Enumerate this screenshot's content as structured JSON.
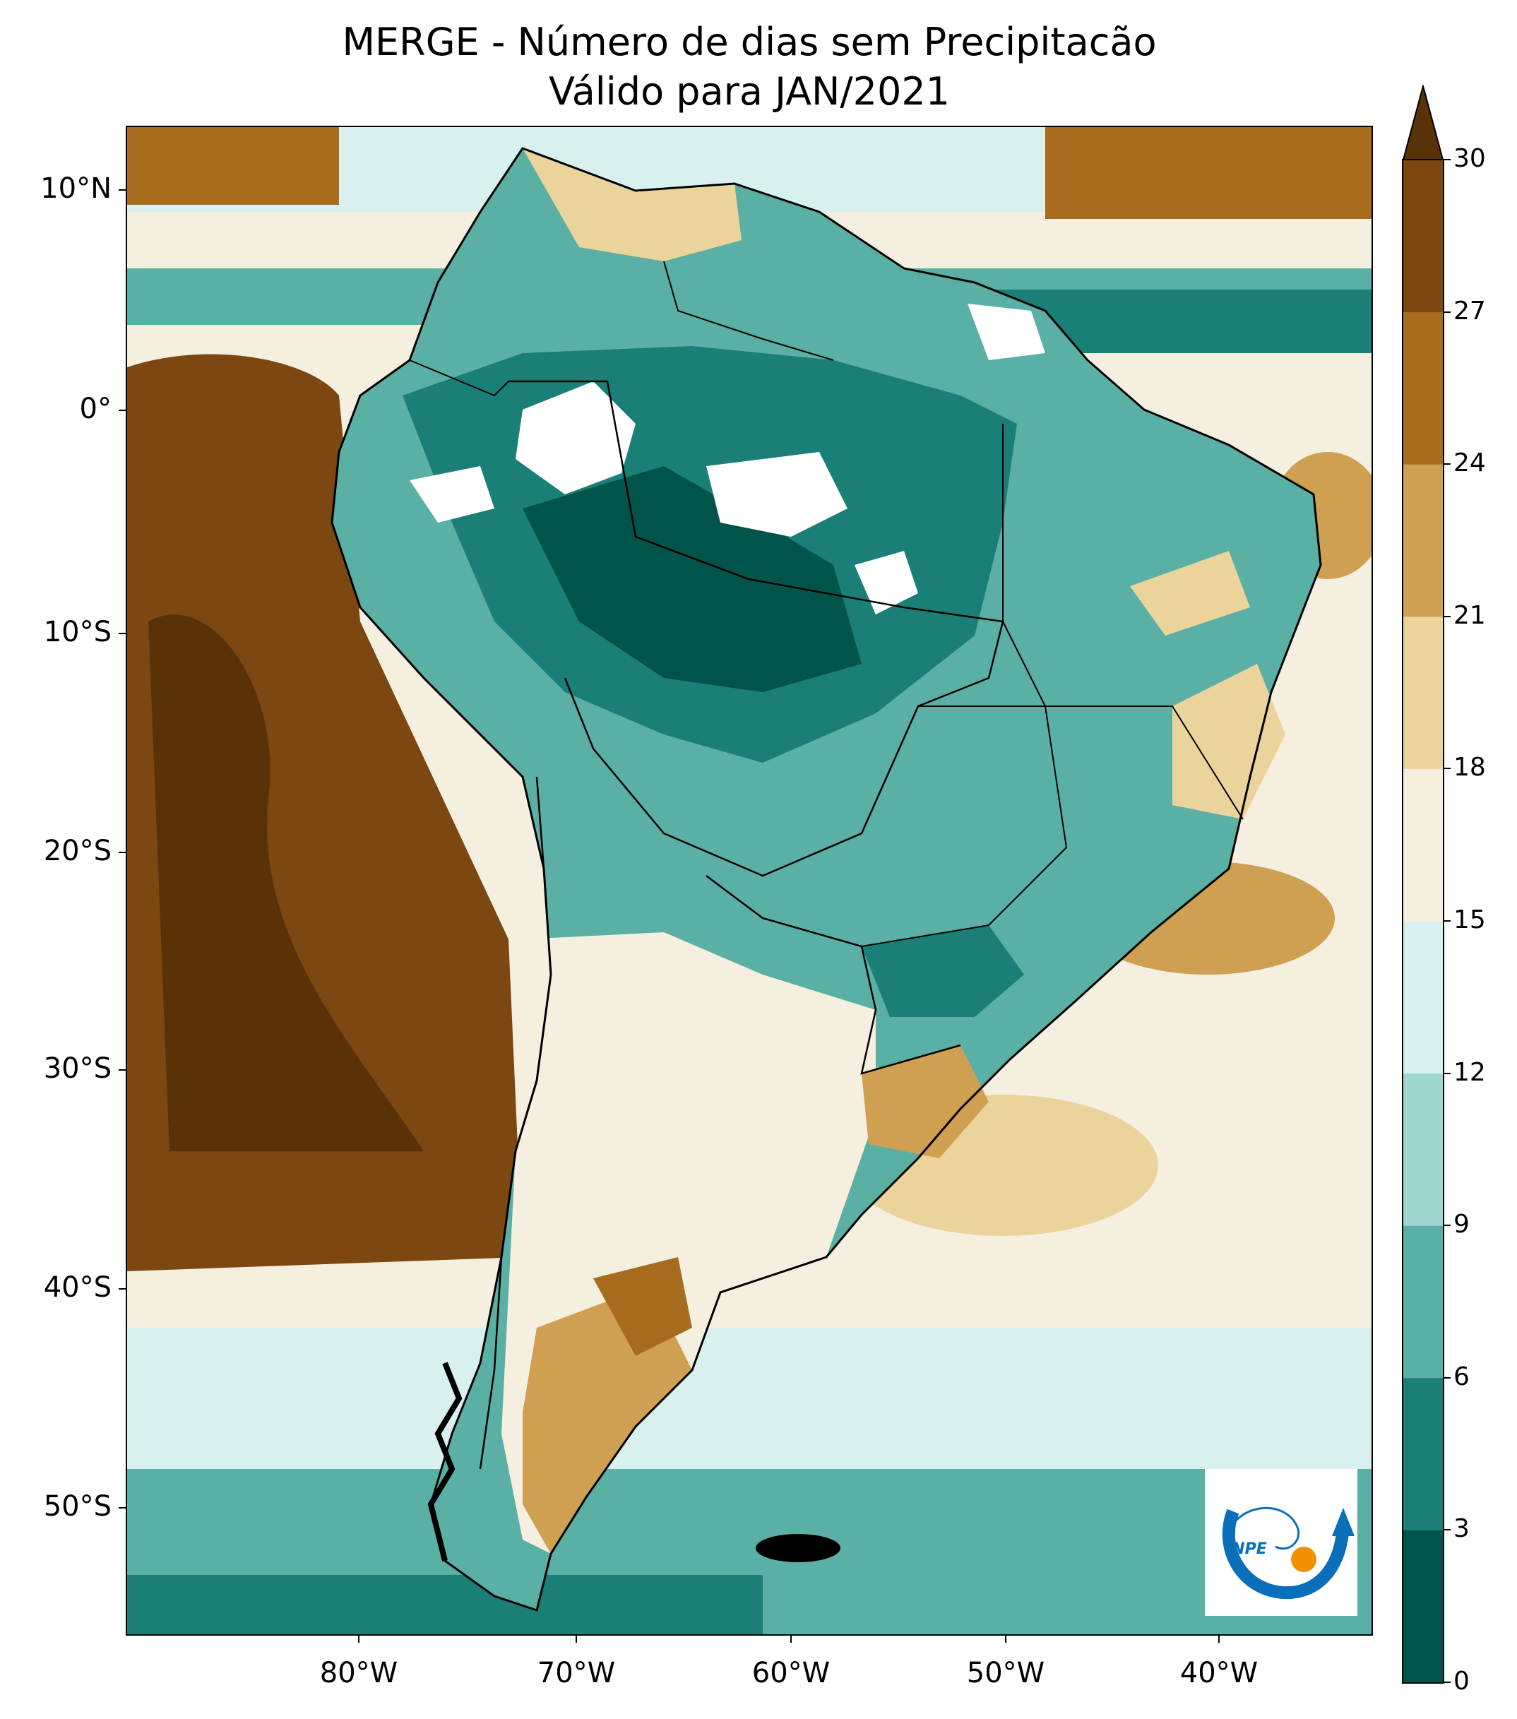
{
  "title": {
    "line1": "MERGE - Número de dias sem Precipitacão",
    "line2": "Válido para JAN/2021"
  },
  "axes": {
    "lat_ticks": [
      "10°N",
      "0°",
      "10°S",
      "20°S",
      "30°S",
      "40°S",
      "50°S"
    ],
    "lon_ticks": [
      "80°W",
      "70°W",
      "60°W",
      "50°W",
      "40°W"
    ]
  },
  "colorbar": {
    "labels": [
      "0",
      "3",
      "6",
      "9",
      "12",
      "15",
      "18",
      "21",
      "24",
      "27",
      "30"
    ],
    "colors": [
      "#01544a",
      "#1a7f77",
      "#5ab0a4",
      "#a0d8cf",
      "#d8f0ee",
      "#f5efdf",
      "#ebd49c",
      "#cf9f52",
      "#a86c1f",
      "#7c4710",
      "#5a3208"
    ],
    "extend": "max"
  },
  "logo": {
    "text": "INPE",
    "colors": {
      "blue": "#0a6fba",
      "orange": "#f29100"
    }
  },
  "map_colors": {
    "ocean_dry": "#7c4710",
    "ocean_mid": "#ebd49c",
    "wet": "#1a7f77",
    "very_wet": "#01544a",
    "no_dry_days": "#ffffff"
  }
}
